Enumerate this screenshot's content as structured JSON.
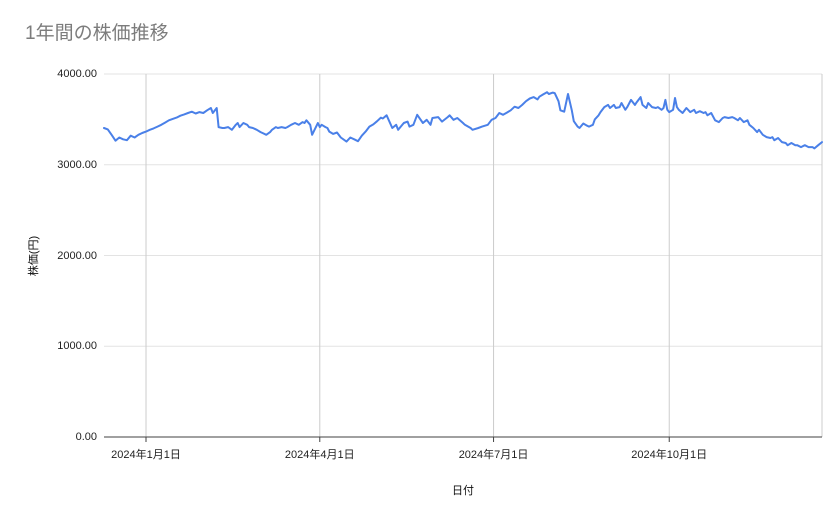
{
  "title": "1年間の株価推移",
  "colors": {
    "line": "#4a80e8",
    "title_text": "#7c7c7c",
    "axis_text": "#1f1f1f",
    "h_gridline": "#e3e3e3",
    "v_gridline": "#cccccc",
    "axis_line": "#424242",
    "background": "#ffffff"
  },
  "chart_data": {
    "type": "line",
    "title": "1年間の株価推移",
    "xlabel": "日付",
    "ylabel": "株価(円)",
    "ylim": [
      0,
      4000
    ],
    "grid": true,
    "legend_position": "none",
    "y_ticks": [
      "4000.00",
      "3000.00",
      "2000.00",
      "1000.00",
      "0.00"
    ],
    "y_tick_values": [
      4000,
      3000,
      2000,
      1000,
      0
    ],
    "x_ticks": [
      {
        "label": "2024年1月1日",
        "day": 0
      },
      {
        "label": "2024年4月1日",
        "day": 91
      },
      {
        "label": "2024年7月1日",
        "day": 182
      },
      {
        "label": "2024年10月1日",
        "day": 274
      }
    ],
    "x_range_days": [
      -22,
      354
    ],
    "x_unit": "days from 2024-01-01 (approx., range ≈ Dec 2023 – Dec 2024)",
    "series": [
      {
        "name": "株価",
        "color": "#4a80e8",
        "points": [
          [
            -22,
            3405
          ],
          [
            -20,
            3390
          ],
          [
            -18,
            3330
          ],
          [
            -16,
            3265
          ],
          [
            -14,
            3300
          ],
          [
            -12,
            3280
          ],
          [
            -10,
            3270
          ],
          [
            -8,
            3320
          ],
          [
            -6,
            3300
          ],
          [
            -4,
            3330
          ],
          [
            -2,
            3350
          ],
          [
            0,
            3365
          ],
          [
            2,
            3385
          ],
          [
            4,
            3400
          ],
          [
            6,
            3420
          ],
          [
            8,
            3440
          ],
          [
            10,
            3465
          ],
          [
            12,
            3490
          ],
          [
            14,
            3505
          ],
          [
            16,
            3520
          ],
          [
            18,
            3540
          ],
          [
            20,
            3555
          ],
          [
            22,
            3570
          ],
          [
            24,
            3585
          ],
          [
            26,
            3565
          ],
          [
            28,
            3580
          ],
          [
            30,
            3570
          ],
          [
            32,
            3600
          ],
          [
            34,
            3625
          ],
          [
            35,
            3570
          ],
          [
            37,
            3625
          ],
          [
            38,
            3415
          ],
          [
            40,
            3405
          ],
          [
            41,
            3405
          ],
          [
            43,
            3415
          ],
          [
            45,
            3385
          ],
          [
            47,
            3440
          ],
          [
            48,
            3460
          ],
          [
            49,
            3415
          ],
          [
            51,
            3460
          ],
          [
            53,
            3440
          ],
          [
            54,
            3415
          ],
          [
            56,
            3405
          ],
          [
            58,
            3385
          ],
          [
            60,
            3360
          ],
          [
            61,
            3350
          ],
          [
            63,
            3330
          ],
          [
            65,
            3360
          ],
          [
            66,
            3385
          ],
          [
            68,
            3415
          ],
          [
            69,
            3405
          ],
          [
            71,
            3415
          ],
          [
            73,
            3405
          ],
          [
            74,
            3415
          ],
          [
            76,
            3440
          ],
          [
            78,
            3460
          ],
          [
            80,
            3440
          ],
          [
            82,
            3470
          ],
          [
            83,
            3460
          ],
          [
            84,
            3490
          ],
          [
            86,
            3440
          ],
          [
            87,
            3330
          ],
          [
            90,
            3460
          ],
          [
            91,
            3415
          ],
          [
            92,
            3440
          ],
          [
            94,
            3415
          ],
          [
            95,
            3405
          ],
          [
            96,
            3365
          ],
          [
            98,
            3340
          ],
          [
            100,
            3355
          ],
          [
            102,
            3300
          ],
          [
            105,
            3255
          ],
          [
            107,
            3300
          ],
          [
            109,
            3280
          ],
          [
            111,
            3260
          ],
          [
            113,
            3320
          ],
          [
            115,
            3365
          ],
          [
            117,
            3420
          ],
          [
            119,
            3445
          ],
          [
            121,
            3480
          ],
          [
            123,
            3520
          ],
          [
            124,
            3510
          ],
          [
            126,
            3545
          ],
          [
            129,
            3405
          ],
          [
            131,
            3440
          ],
          [
            132,
            3385
          ],
          [
            135,
            3460
          ],
          [
            137,
            3475
          ],
          [
            138,
            3420
          ],
          [
            140,
            3440
          ],
          [
            142,
            3550
          ],
          [
            145,
            3460
          ],
          [
            147,
            3495
          ],
          [
            149,
            3440
          ],
          [
            150,
            3515
          ],
          [
            153,
            3525
          ],
          [
            155,
            3475
          ],
          [
            158,
            3525
          ],
          [
            159,
            3545
          ],
          [
            161,
            3495
          ],
          [
            163,
            3515
          ],
          [
            166,
            3460
          ],
          [
            167,
            3440
          ],
          [
            170,
            3405
          ],
          [
            171,
            3385
          ],
          [
            174,
            3405
          ],
          [
            176,
            3420
          ],
          [
            179,
            3440
          ],
          [
            181,
            3495
          ],
          [
            183,
            3515
          ],
          [
            185,
            3570
          ],
          [
            187,
            3550
          ],
          [
            189,
            3575
          ],
          [
            191,
            3600
          ],
          [
            193,
            3640
          ],
          [
            195,
            3625
          ],
          [
            197,
            3660
          ],
          [
            199,
            3700
          ],
          [
            201,
            3730
          ],
          [
            203,
            3745
          ],
          [
            205,
            3720
          ],
          [
            206,
            3750
          ],
          [
            208,
            3775
          ],
          [
            210,
            3800
          ],
          [
            211,
            3780
          ],
          [
            213,
            3795
          ],
          [
            214,
            3790
          ],
          [
            216,
            3700
          ],
          [
            217,
            3600
          ],
          [
            219,
            3585
          ],
          [
            221,
            3780
          ],
          [
            223,
            3600
          ],
          [
            224,
            3480
          ],
          [
            226,
            3420
          ],
          [
            227,
            3405
          ],
          [
            229,
            3455
          ],
          [
            231,
            3430
          ],
          [
            232,
            3420
          ],
          [
            234,
            3440
          ],
          [
            235,
            3500
          ],
          [
            237,
            3545
          ],
          [
            238,
            3580
          ],
          [
            240,
            3635
          ],
          [
            242,
            3660
          ],
          [
            243,
            3625
          ],
          [
            245,
            3660
          ],
          [
            246,
            3625
          ],
          [
            248,
            3635
          ],
          [
            249,
            3680
          ],
          [
            251,
            3605
          ],
          [
            252,
            3635
          ],
          [
            254,
            3715
          ],
          [
            256,
            3660
          ],
          [
            257,
            3690
          ],
          [
            259,
            3745
          ],
          [
            260,
            3660
          ],
          [
            262,
            3625
          ],
          [
            263,
            3680
          ],
          [
            265,
            3635
          ],
          [
            267,
            3625
          ],
          [
            268,
            3635
          ],
          [
            270,
            3605
          ],
          [
            271,
            3625
          ],
          [
            272,
            3715
          ],
          [
            273,
            3605
          ],
          [
            274,
            3580
          ],
          [
            276,
            3605
          ],
          [
            277,
            3735
          ],
          [
            278,
            3635
          ],
          [
            279,
            3605
          ],
          [
            281,
            3570
          ],
          [
            283,
            3625
          ],
          [
            285,
            3580
          ],
          [
            287,
            3605
          ],
          [
            288,
            3570
          ],
          [
            290,
            3590
          ],
          [
            292,
            3570
          ],
          [
            293,
            3580
          ],
          [
            294,
            3545
          ],
          [
            296,
            3570
          ],
          [
            298,
            3490
          ],
          [
            300,
            3470
          ],
          [
            302,
            3515
          ],
          [
            303,
            3525
          ],
          [
            305,
            3515
          ],
          [
            307,
            3525
          ],
          [
            308,
            3515
          ],
          [
            310,
            3490
          ],
          [
            311,
            3515
          ],
          [
            313,
            3470
          ],
          [
            315,
            3490
          ],
          [
            316,
            3440
          ],
          [
            318,
            3405
          ],
          [
            320,
            3360
          ],
          [
            321,
            3385
          ],
          [
            323,
            3330
          ],
          [
            325,
            3305
          ],
          [
            327,
            3295
          ],
          [
            328,
            3305
          ],
          [
            329,
            3270
          ],
          [
            331,
            3295
          ],
          [
            333,
            3250
          ],
          [
            335,
            3240
          ],
          [
            336,
            3215
          ],
          [
            338,
            3240
          ],
          [
            340,
            3215
          ],
          [
            341,
            3215
          ],
          [
            343,
            3195
          ],
          [
            345,
            3215
          ],
          [
            347,
            3195
          ],
          [
            349,
            3195
          ],
          [
            350,
            3180
          ],
          [
            352,
            3215
          ],
          [
            354,
            3250
          ]
        ]
      }
    ]
  }
}
